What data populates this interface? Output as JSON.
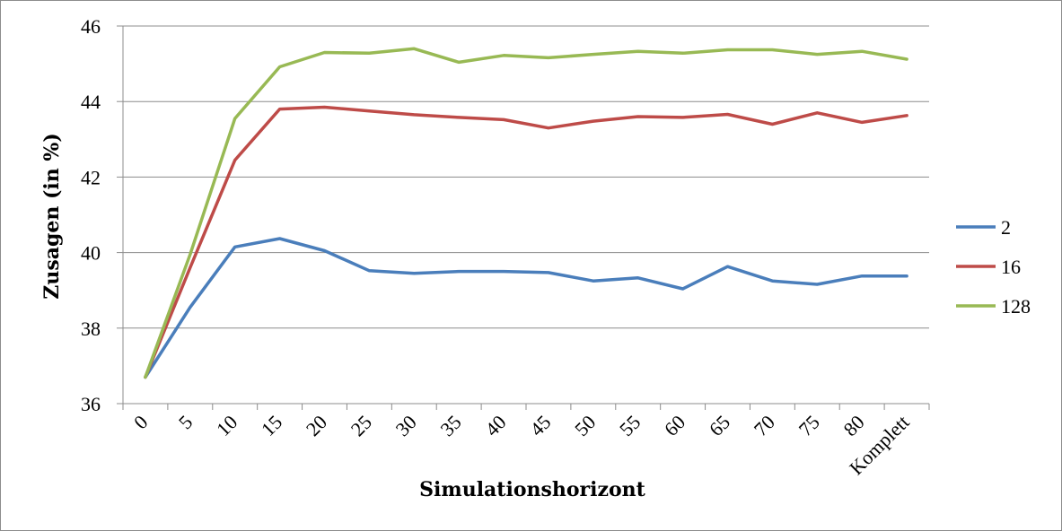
{
  "chart_data": {
    "type": "line",
    "title": "",
    "xlabel": "Simulationshorizont",
    "ylabel": "Zusagen (in %)",
    "categories": [
      "0",
      "5",
      "10",
      "15",
      "20",
      "25",
      "30",
      "35",
      "40",
      "45",
      "50",
      "55",
      "60",
      "65",
      "70",
      "75",
      "80",
      "Komplett"
    ],
    "ylim": [
      36,
      46
    ],
    "yticks": [
      36,
      38,
      40,
      42,
      44,
      46
    ],
    "grid": true,
    "legend_position": "right",
    "series": [
      {
        "name": "2",
        "color": "#4a7ebb",
        "values": [
          36.7,
          38.55,
          40.15,
          40.37,
          40.05,
          39.52,
          39.45,
          39.5,
          39.5,
          39.47,
          39.25,
          39.33,
          39.04,
          39.63,
          39.25,
          39.16,
          39.38,
          39.38
        ]
      },
      {
        "name": "16",
        "color": "#be4b48",
        "values": [
          36.7,
          39.6,
          42.45,
          43.8,
          43.85,
          43.75,
          43.65,
          43.58,
          43.52,
          43.3,
          43.48,
          43.6,
          43.58,
          43.66,
          43.4,
          43.7,
          43.45,
          43.63
        ]
      },
      {
        "name": "128",
        "color": "#98b954",
        "values": [
          36.7,
          39.95,
          43.55,
          44.92,
          45.3,
          45.28,
          45.4,
          45.04,
          45.22,
          45.16,
          45.25,
          45.33,
          45.28,
          45.37,
          45.37,
          45.25,
          45.33,
          45.12
        ]
      }
    ]
  }
}
